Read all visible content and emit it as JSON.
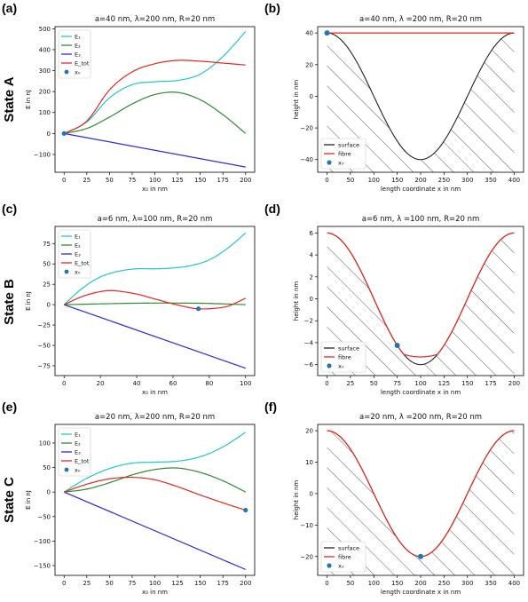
{
  "panel_labels": [
    "(a)",
    "(b)",
    "(c)",
    "(d)",
    "(e)",
    "(f)"
  ],
  "state_labels": [
    "State A",
    "State B",
    "State C"
  ],
  "colors": {
    "E1": "#1fc8c8",
    "E2": "#2e8b2e",
    "E3": "#2b2bdc",
    "Etot": "#e8261e",
    "x0": "#1f77b4",
    "surface": "#222222",
    "fibre": "#e8261e",
    "hatch": "#333333"
  },
  "chart_data": [
    {
      "type": "line",
      "title": "a=40 nm, λ=200 nm, R=20 nm",
      "xlabel": "x₀ in nm",
      "ylabel": "E in nJ",
      "xlim": [
        -10,
        210
      ],
      "ylim": [
        -185,
        510
      ],
      "xticks": [
        0,
        25,
        50,
        75,
        100,
        125,
        150,
        175,
        200
      ],
      "yticks": [
        -100,
        0,
        100,
        200,
        300,
        400,
        500
      ],
      "legend_position": "top-left",
      "grid": false,
      "series": [
        {
          "name": "E₁",
          "color": "E1",
          "x": [
            0,
            25,
            50,
            75,
            100,
            125,
            150,
            175,
            200
          ],
          "y": [
            0,
            55,
            170,
            233,
            247,
            253,
            283,
            367,
            487
          ]
        },
        {
          "name": "E₂",
          "color": "E2",
          "x": [
            0,
            25,
            50,
            75,
            100,
            125,
            150,
            175,
            200
          ],
          "y": [
            0,
            24,
            78,
            141,
            186,
            196,
            161,
            90,
            0
          ]
        },
        {
          "name": "E₃",
          "color": "E3",
          "x": [
            0,
            200
          ],
          "y": [
            0,
            -160
          ]
        },
        {
          "name": "E_tot",
          "color": "Etot",
          "x": [
            0,
            25,
            50,
            75,
            100,
            125,
            150,
            175,
            200
          ],
          "y": [
            0,
            59,
            208,
            294,
            333,
            349,
            345,
            336,
            327
          ]
        }
      ],
      "markers": [
        {
          "name": "x₀",
          "x": 0,
          "y": 0
        }
      ]
    },
    {
      "type": "line",
      "title": "a=40 nm, λ =200 nm, R=20 nm",
      "xlabel": "length coordinate x in nm",
      "ylabel": "height in nm",
      "xlim": [
        -20,
        420
      ],
      "ylim": [
        -48,
        44
      ],
      "xticks": [
        0,
        50,
        100,
        150,
        200,
        250,
        300,
        350,
        400
      ],
      "yticks": [
        -40,
        -20,
        0,
        20,
        40
      ],
      "legend_position": "bottom-left",
      "surface": {
        "name": "surface",
        "amplitude": 40,
        "wavelength": 400,
        "x_range": [
          0,
          400
        ]
      },
      "fibre": {
        "name": "fibre",
        "x": [
          0,
          400
        ],
        "y": [
          40,
          40
        ]
      },
      "markers": [
        {
          "name": "x₀",
          "x": 0,
          "y": 40
        }
      ]
    },
    {
      "type": "line",
      "title": "a=6 nm, λ=100 nm, R=20 nm",
      "xlabel": "x₀ in nm",
      "ylabel": "E in nJ",
      "xlim": [
        -5,
        105
      ],
      "ylim": [
        -87,
        96
      ],
      "xticks": [
        0,
        20,
        40,
        60,
        80,
        100
      ],
      "yticks": [
        -75,
        -50,
        -25,
        0,
        25,
        50,
        75
      ],
      "legend_position": "top-left",
      "grid": false,
      "series": [
        {
          "name": "E₁",
          "color": "E1",
          "x": [
            0,
            10,
            20,
            30,
            40,
            50,
            60,
            70,
            80,
            90,
            100
          ],
          "y": [
            0,
            20,
            34,
            41,
            44,
            44,
            45,
            48,
            55,
            69,
            88
          ]
        },
        {
          "name": "E₂",
          "color": "E2",
          "x": [
            0,
            20,
            40,
            60,
            80,
            100
          ],
          "y": [
            0,
            1,
            1.8,
            2,
            1.5,
            0
          ]
        },
        {
          "name": "E₃",
          "color": "E3",
          "x": [
            0,
            100
          ],
          "y": [
            0,
            -78
          ]
        },
        {
          "name": "E_tot",
          "color": "Etot",
          "x": [
            0,
            10,
            20,
            28,
            40,
            50,
            60,
            70,
            74,
            80,
            90,
            100
          ],
          "y": [
            0,
            10,
            16,
            17,
            13,
            7,
            1,
            -4,
            -5,
            -5,
            -2,
            8
          ]
        }
      ],
      "markers": [
        {
          "name": "x₀",
          "x": 74,
          "y": -5
        }
      ]
    },
    {
      "type": "line",
      "title": "a=6 nm, λ =100 nm, R=20 nm",
      "xlabel": "length coordinate x in nm",
      "ylabel": "height in nm",
      "xlim": [
        -10,
        210
      ],
      "ylim": [
        -7,
        6.6
      ],
      "xticks": [
        0,
        25,
        50,
        75,
        100,
        125,
        150,
        175,
        200
      ],
      "yticks": [
        -6,
        -4,
        -2,
        0,
        2,
        4,
        6
      ],
      "legend_position": "bottom-left",
      "surface": {
        "name": "surface",
        "amplitude": 6,
        "wavelength": 200,
        "x_range": [
          0,
          200
        ]
      },
      "fibre": {
        "name": "fibre",
        "amplitude": 6,
        "wavelength": 200,
        "bottom_flat": -5.3,
        "flat_halfwidth": 18
      },
      "markers": [
        {
          "name": "x₀",
          "x": 75,
          "y": -4.25
        }
      ]
    },
    {
      "type": "line",
      "title": "a=20 nm, λ=200 nm, R=20 nm",
      "xlabel": "x₀ in nm",
      "ylabel": "E in nJ",
      "xlim": [
        -10,
        210
      ],
      "ylim": [
        -170,
        138
      ],
      "xticks": [
        0,
        25,
        50,
        75,
        100,
        125,
        150,
        175,
        200
      ],
      "yticks": [
        -150,
        -100,
        -50,
        0,
        50,
        100
      ],
      "legend_position": "top-left",
      "grid": false,
      "series": [
        {
          "name": "E₁",
          "color": "E1",
          "x": [
            0,
            25,
            50,
            75,
            100,
            125,
            150,
            175,
            200
          ],
          "y": [
            0,
            28,
            48,
            59,
            61,
            63,
            72,
            92,
            122
          ]
        },
        {
          "name": "E₂",
          "color": "E2",
          "x": [
            0,
            25,
            50,
            75,
            100,
            125,
            150,
            175,
            200
          ],
          "y": [
            0,
            6,
            19,
            35,
            46,
            49,
            40,
            23,
            0
          ]
        },
        {
          "name": "E₃",
          "color": "E3",
          "x": [
            0,
            200
          ],
          "y": [
            0,
            -158
          ]
        },
        {
          "name": "E_tot",
          "color": "Etot",
          "x": [
            0,
            25,
            50,
            75,
            100,
            125,
            150,
            175,
            200
          ],
          "y": [
            0,
            16,
            27,
            30,
            25,
            11,
            -6,
            -22,
            -37
          ]
        }
      ],
      "markers": [
        {
          "name": "x₀",
          "x": 200,
          "y": -37
        }
      ]
    },
    {
      "type": "line",
      "title": "a=20 nm, λ =200 nm, R=20 nm",
      "xlabel": "length coordinate x in nm",
      "ylabel": "height in nm",
      "xlim": [
        -20,
        420
      ],
      "ylim": [
        -26,
        22
      ],
      "xticks": [
        0,
        50,
        100,
        150,
        200,
        250,
        300,
        350,
        400
      ],
      "yticks": [
        -20,
        -10,
        0,
        10,
        20
      ],
      "legend_position": "bottom-left",
      "surface": {
        "name": "surface",
        "amplitude": 20,
        "wavelength": 400,
        "x_range": [
          0,
          400
        ]
      },
      "fibre": {
        "name": "fibre",
        "amplitude": 20,
        "wavelength": 400
      },
      "markers": [
        {
          "name": "x₀",
          "x": 200,
          "y": -20
        }
      ]
    }
  ]
}
